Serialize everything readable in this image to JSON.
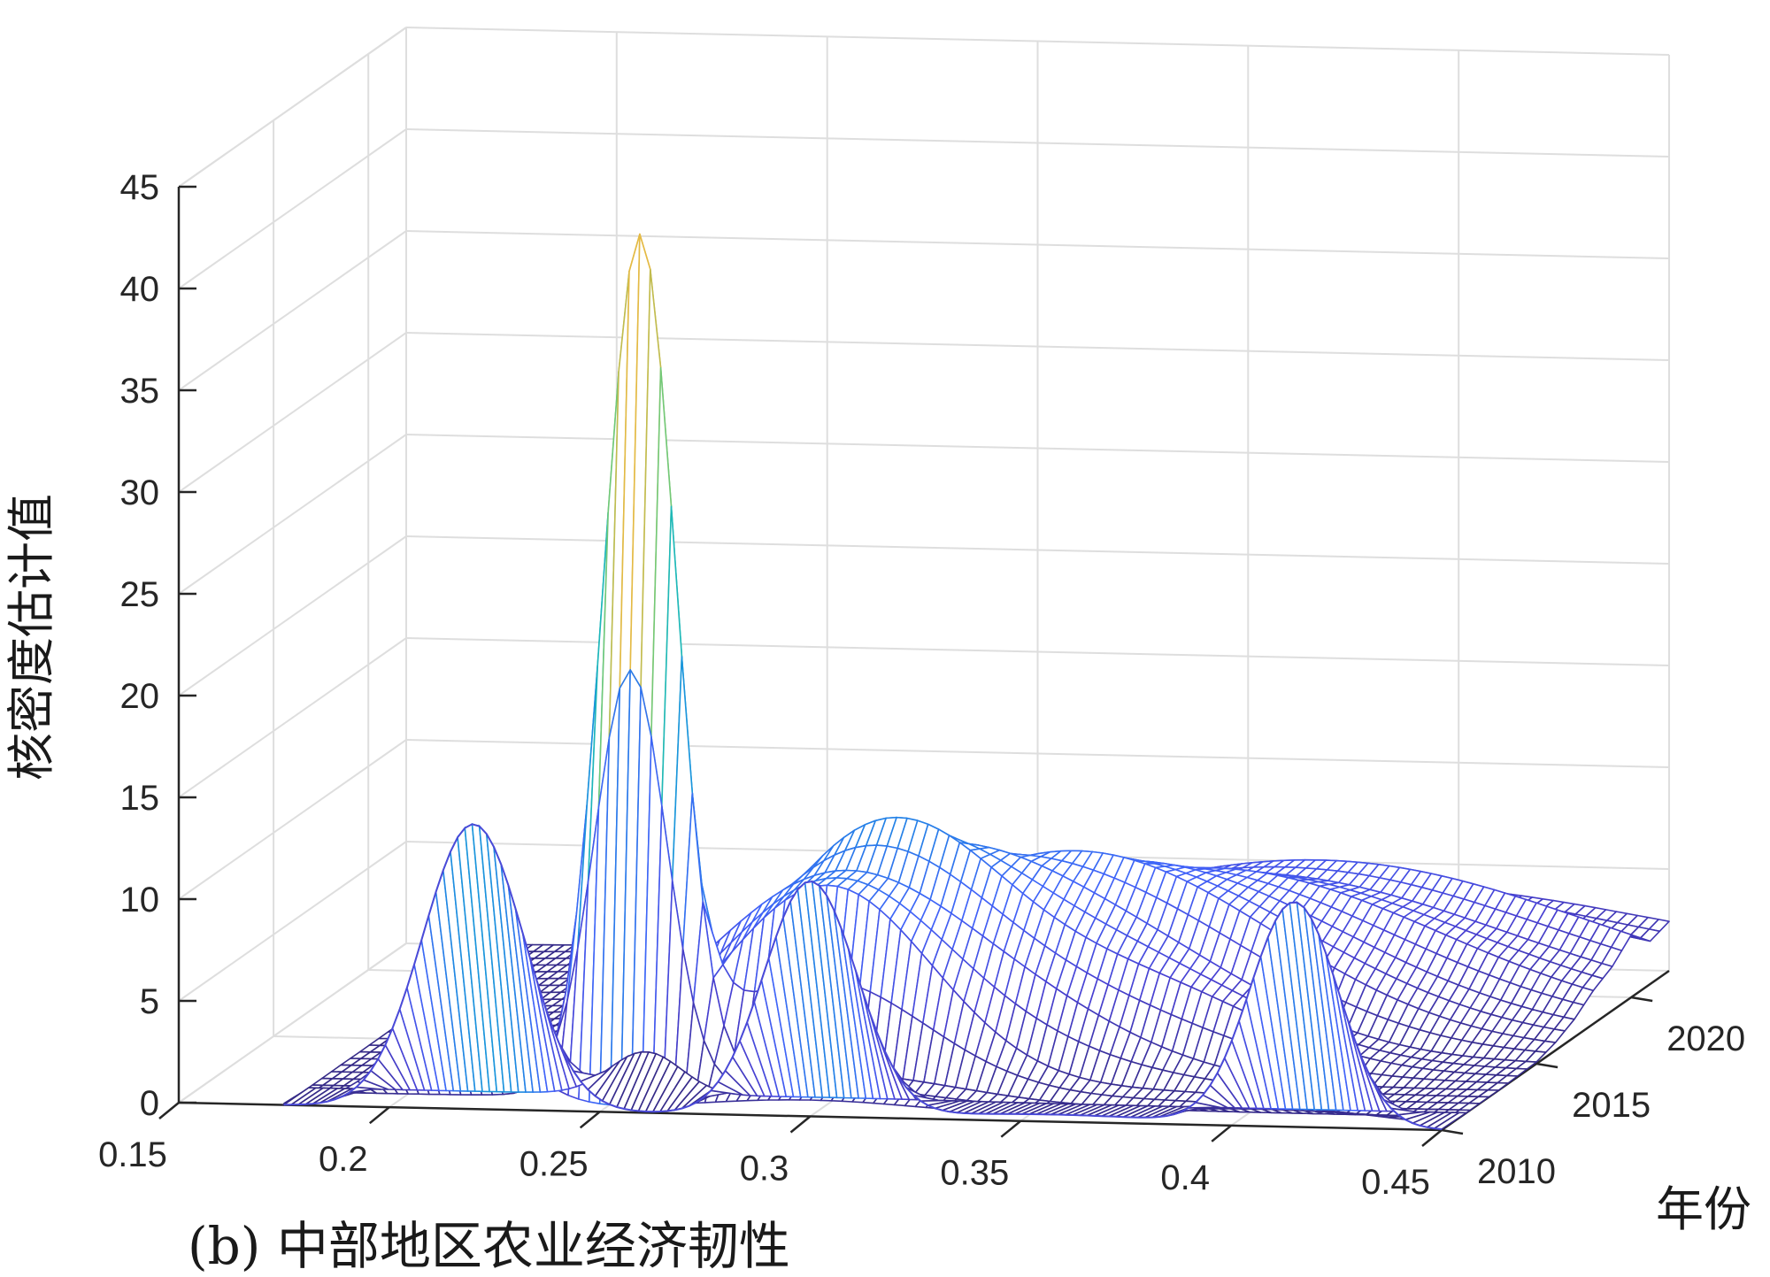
{
  "chart_data": {
    "type": "surface",
    "caption": "(b) 中部地区农业经济韧性",
    "xlabel": "",
    "ylabel": "年份",
    "zlabel": "核密度估计值",
    "xlim": [
      0.15,
      0.45
    ],
    "ylim": [
      2010,
      2022
    ],
    "zlim": [
      0,
      45
    ],
    "x_ticks": [
      "0.15",
      "0.2",
      "0.25",
      "0.3",
      "0.35",
      "0.4",
      "0.45"
    ],
    "y_ticks": [
      "2010",
      "2015",
      "2020"
    ],
    "z_ticks": [
      "0",
      "5",
      "10",
      "15",
      "20",
      "25",
      "30",
      "35",
      "40",
      "45"
    ],
    "grid": true,
    "colormap": "parula",
    "surface_slices": [
      {
        "year": 2010,
        "peaks": [
          {
            "x": 0.215,
            "height": 4.5,
            "width": 0.014
          },
          {
            "x": 0.3,
            "height": 0.8,
            "width": 0.03
          },
          {
            "x": 0.405,
            "height": 1.0,
            "width": 0.03
          }
        ]
      },
      {
        "year": 2011,
        "peaks": [
          {
            "x": 0.255,
            "height": 42.0,
            "width": 0.0085
          },
          {
            "x": 0.3,
            "height": 1.5,
            "width": 0.03
          }
        ]
      },
      {
        "year": 2012,
        "peaks": [
          {
            "x": 0.295,
            "height": 10.0,
            "width": 0.025
          },
          {
            "x": 0.36,
            "height": 0.3,
            "width": 0.03
          }
        ]
      },
      {
        "year": 2013,
        "peaks": [
          {
            "x": 0.29,
            "height": 9.0,
            "width": 0.03
          },
          {
            "x": 0.335,
            "height": 3.0,
            "width": 0.03
          }
        ]
      },
      {
        "year": 2014,
        "peaks": [
          {
            "x": 0.3,
            "height": 11.5,
            "width": 0.028
          },
          {
            "x": 0.36,
            "height": 4.0,
            "width": 0.03
          }
        ]
      },
      {
        "year": 2015,
        "peaks": [
          {
            "x": 0.3,
            "height": 8.0,
            "width": 0.032
          },
          {
            "x": 0.35,
            "height": 5.0,
            "width": 0.035
          }
        ]
      },
      {
        "year": 2016,
        "peaks": [
          {
            "x": 0.32,
            "height": 6.0,
            "width": 0.04
          },
          {
            "x": 0.36,
            "height": 4.5,
            "width": 0.04
          }
        ]
      },
      {
        "year": 2017,
        "peaks": [
          {
            "x": 0.33,
            "height": 5.5,
            "width": 0.045
          },
          {
            "x": 0.37,
            "height": 3.5,
            "width": 0.045
          }
        ]
      },
      {
        "year": 2018,
        "peaks": [
          {
            "x": 0.345,
            "height": 5.5,
            "width": 0.05
          },
          {
            "x": 0.39,
            "height": 2.5,
            "width": 0.045
          }
        ]
      },
      {
        "year": 2019,
        "peaks": [
          {
            "x": 0.35,
            "height": 5.0,
            "width": 0.055
          },
          {
            "x": 0.4,
            "height": 2.0,
            "width": 0.05
          }
        ]
      },
      {
        "year": 2020,
        "peaks": [
          {
            "x": 0.36,
            "height": 5.0,
            "width": 0.06
          },
          {
            "x": 0.41,
            "height": 2.0,
            "width": 0.05
          }
        ]
      },
      {
        "year": 2021,
        "peaks": [
          {
            "x": 0.37,
            "height": 4.5,
            "width": 0.065
          }
        ]
      },
      {
        "year": 2022,
        "peaks": [
          {
            "x": 0.38,
            "height": 4.0,
            "width": 0.07
          }
        ]
      }
    ],
    "front_edge_peaks": [
      {
        "x": 0.22,
        "height": 14.0,
        "width": 0.012
      },
      {
        "x": 0.3,
        "height": 11.5,
        "width": 0.011
      },
      {
        "x": 0.3575,
        "height": 0.35,
        "width": 0.03
      },
      {
        "x": 0.415,
        "height": 11.0,
        "width": 0.0105
      }
    ]
  }
}
